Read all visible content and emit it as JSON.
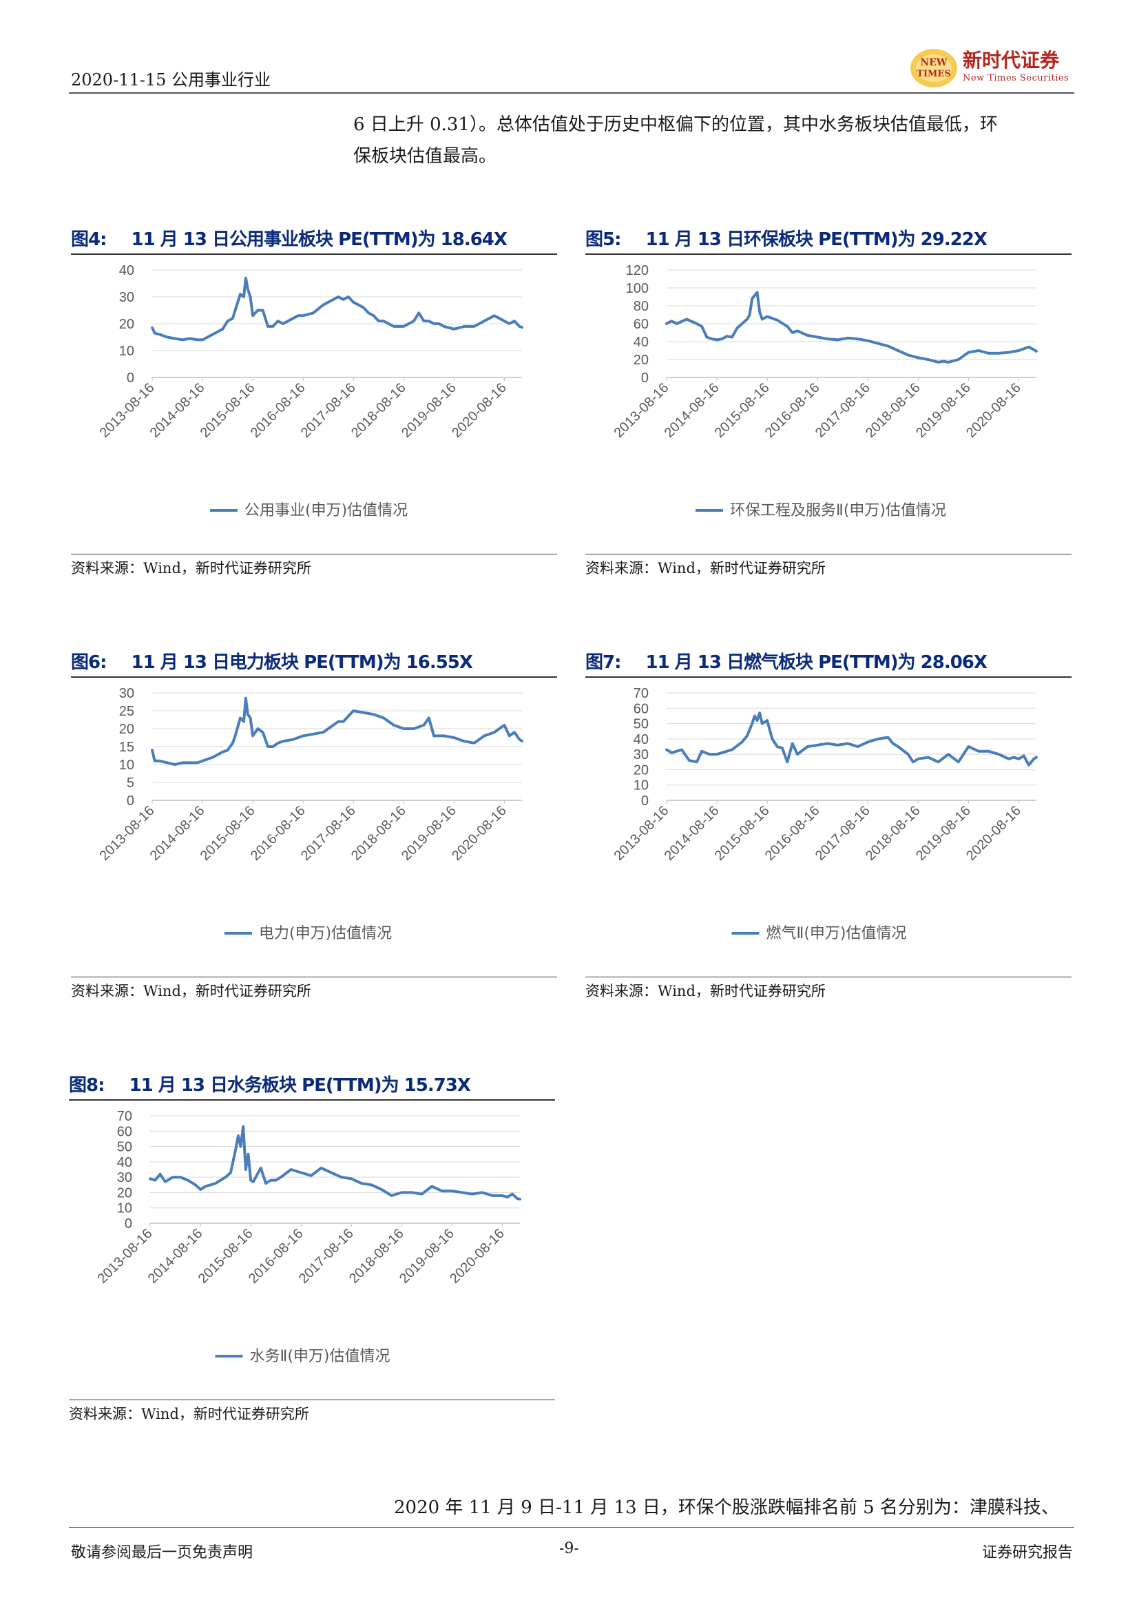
{
  "header": {
    "date_industry": "2020-11-15 公用事业行业",
    "logo_name": "新时代证券",
    "logo_sub": "New Times Securities",
    "logo_mark_1": "NEW",
    "logo_mark_2": "TIMES"
  },
  "intro": {
    "line1": "6 日上升 0.31）。总体估值处于历史中枢偏下的位置，其中水务板块估值最低，环",
    "line2": "保板块估值最高。"
  },
  "colors": {
    "line": "#4a7ebb",
    "title": "#0b2b7a",
    "grid": "#d9d9d9",
    "tick": "#595959"
  },
  "figures": [
    {
      "num": "图4:",
      "title": "11 月 13 日公用事业板块 PE(TTM)为 18.64X",
      "source": "资料来源：Wind，新时代证券研究所"
    },
    {
      "num": "图5:",
      "title": "11 月 13 日环保板块 PE(TTM)为 29.22X",
      "source": "资料来源：Wind，新时代证券研究所"
    },
    {
      "num": "图6:",
      "title": "11 月 13 日电力板块 PE(TTM)为 16.55X",
      "source": "资料来源：Wind，新时代证券研究所"
    },
    {
      "num": "图7:",
      "title": "11 月 13 日燃气板块 PE(TTM)为 28.06X",
      "source": "资料来源：Wind，新时代证券研究所"
    },
    {
      "num": "图8:",
      "title": "11 月 13 日水务板块 PE(TTM)为 15.73X",
      "source": "资料来源：Wind，新时代证券研究所"
    }
  ],
  "chart_data": [
    {
      "type": "line",
      "categories": [
        "2013-08-16",
        "2014-08-16",
        "2015-08-16",
        "2016-08-16",
        "2017-08-16",
        "2018-08-16",
        "2019-08-16",
        "2020-08-16"
      ],
      "ylim": [
        0,
        40
      ],
      "yticks": [
        0,
        10,
        20,
        30,
        40
      ],
      "grid": true,
      "legend_position": "bottom",
      "series": [
        {
          "name": "公用事业(申万)估值情况",
          "x": [
            0,
            0.05,
            0.15,
            0.3,
            0.45,
            0.6,
            0.75,
            0.9,
            1.0,
            1.2,
            1.4,
            1.5,
            1.6,
            1.65,
            1.75,
            1.82,
            1.86,
            1.9,
            1.95,
            2.0,
            2.1,
            2.2,
            2.3,
            2.4,
            2.5,
            2.6,
            2.7,
            2.8,
            2.9,
            3.0,
            3.2,
            3.4,
            3.6,
            3.7,
            3.8,
            3.9,
            4.0,
            4.1,
            4.2,
            4.3,
            4.4,
            4.5,
            4.6,
            4.7,
            4.8,
            5.0,
            5.1,
            5.2,
            5.3,
            5.4,
            5.5,
            5.6,
            5.7,
            5.8,
            6.0,
            6.2,
            6.4,
            6.6,
            6.8,
            7.0,
            7.1,
            7.2,
            7.3,
            7.35
          ],
          "values": [
            18.5,
            16.5,
            16,
            15,
            14.5,
            14,
            14.5,
            14,
            14,
            16,
            18,
            21,
            22,
            25,
            31,
            30,
            37,
            33,
            30,
            23,
            25,
            25,
            19,
            19,
            21,
            20,
            21,
            22,
            23,
            23,
            24,
            27,
            29,
            30,
            29,
            30,
            28,
            27,
            26,
            24,
            23,
            21,
            21,
            20,
            19,
            19,
            20,
            21,
            24,
            21,
            21,
            20,
            20,
            19,
            18,
            19,
            19,
            21,
            23,
            21,
            20,
            21,
            19,
            18.64
          ]
        }
      ]
    },
    {
      "type": "line",
      "categories": [
        "2013-08-16",
        "2014-08-16",
        "2015-08-16",
        "2016-08-16",
        "2017-08-16",
        "2018-08-16",
        "2019-08-16",
        "2020-08-16"
      ],
      "ylim": [
        0,
        120
      ],
      "yticks": [
        0,
        20,
        40,
        60,
        80,
        100,
        120
      ],
      "grid": true,
      "legend_position": "bottom",
      "series": [
        {
          "name": "环保工程及服务Ⅱ(申万)估值情况",
          "x": [
            0,
            0.1,
            0.2,
            0.4,
            0.6,
            0.7,
            0.8,
            0.9,
            1.0,
            1.1,
            1.2,
            1.3,
            1.4,
            1.5,
            1.6,
            1.65,
            1.7,
            1.8,
            1.85,
            1.9,
            2.0,
            2.2,
            2.4,
            2.5,
            2.6,
            2.8,
            3.0,
            3.2,
            3.4,
            3.6,
            3.8,
            4.0,
            4.2,
            4.4,
            4.6,
            4.8,
            5.0,
            5.2,
            5.4,
            5.5,
            5.6,
            5.8,
            6.0,
            6.2,
            6.4,
            6.6,
            6.8,
            7.0,
            7.1,
            7.2,
            7.3,
            7.35
          ],
          "values": [
            60,
            63,
            60,
            65,
            60,
            57,
            45,
            43,
            42,
            43,
            46,
            45,
            55,
            60,
            65,
            70,
            88,
            95,
            73,
            65,
            68,
            64,
            57,
            50,
            52,
            47,
            45,
            43,
            42,
            44,
            43,
            41,
            38,
            35,
            30,
            25,
            22,
            20,
            17,
            18,
            17,
            20,
            28,
            30,
            27,
            27,
            28,
            30,
            32,
            34,
            31,
            29.22
          ]
        }
      ]
    },
    {
      "type": "line",
      "categories": [
        "2013-08-16",
        "2014-08-16",
        "2015-08-16",
        "2016-08-16",
        "2017-08-16",
        "2018-08-16",
        "2019-08-16",
        "2020-08-16"
      ],
      "ylim": [
        0,
        30
      ],
      "yticks": [
        0,
        5,
        10,
        15,
        20,
        25,
        30
      ],
      "grid": true,
      "legend_position": "bottom",
      "series": [
        {
          "name": "电力(申万)估值情况",
          "x": [
            0,
            0.05,
            0.15,
            0.3,
            0.45,
            0.6,
            0.75,
            0.9,
            1.0,
            1.2,
            1.4,
            1.5,
            1.6,
            1.65,
            1.75,
            1.82,
            1.86,
            1.9,
            1.95,
            2.0,
            2.1,
            2.2,
            2.3,
            2.4,
            2.5,
            2.6,
            2.8,
            3.0,
            3.2,
            3.4,
            3.6,
            3.7,
            3.8,
            4.0,
            4.2,
            4.4,
            4.6,
            4.8,
            5.0,
            5.2,
            5.4,
            5.5,
            5.6,
            5.8,
            6.0,
            6.2,
            6.4,
            6.6,
            6.8,
            7.0,
            7.1,
            7.2,
            7.3,
            7.35
          ],
          "values": [
            14,
            11,
            11,
            10.5,
            10,
            10.5,
            10.5,
            10.5,
            11,
            12,
            13.5,
            14,
            16,
            18,
            23,
            22,
            28.5,
            24,
            23,
            18,
            20,
            19,
            15,
            15,
            16,
            16.5,
            17,
            18,
            18.5,
            19,
            21,
            22,
            22,
            25,
            24.5,
            24,
            23,
            21,
            20,
            20,
            21,
            23,
            18,
            18,
            17.5,
            16.5,
            16,
            18,
            19,
            21,
            18,
            19,
            17,
            16.55
          ]
        }
      ]
    },
    {
      "type": "line",
      "categories": [
        "2013-08-16",
        "2014-08-16",
        "2015-08-16",
        "2016-08-16",
        "2017-08-16",
        "2018-08-16",
        "2019-08-16",
        "2020-08-16"
      ],
      "ylim": [
        0,
        70
      ],
      "yticks": [
        0,
        10,
        20,
        30,
        40,
        50,
        60,
        70
      ],
      "grid": true,
      "legend_position": "bottom",
      "series": [
        {
          "name": "燃气Ⅱ(申万)估值情况",
          "x": [
            0,
            0.1,
            0.3,
            0.45,
            0.6,
            0.7,
            0.85,
            1.0,
            1.2,
            1.3,
            1.5,
            1.6,
            1.7,
            1.75,
            1.8,
            1.85,
            1.9,
            2.0,
            2.1,
            2.2,
            2.3,
            2.4,
            2.5,
            2.6,
            2.8,
            3.0,
            3.2,
            3.4,
            3.6,
            3.8,
            4.0,
            4.2,
            4.4,
            4.5,
            4.6,
            4.8,
            4.9,
            5.0,
            5.2,
            5.4,
            5.6,
            5.8,
            6.0,
            6.2,
            6.4,
            6.6,
            6.8,
            6.9,
            7.0,
            7.1,
            7.2,
            7.3,
            7.35
          ],
          "values": [
            33,
            31,
            33,
            26,
            25,
            32,
            30,
            30,
            32,
            33,
            38,
            42,
            50,
            55,
            52,
            57,
            50,
            52,
            40,
            35,
            34,
            25,
            37,
            30,
            35,
            36,
            37,
            36,
            37,
            35,
            38,
            40,
            41,
            37,
            35,
            30,
            25,
            27,
            28,
            25,
            30,
            25,
            35,
            32,
            32,
            30,
            27,
            28,
            27,
            29,
            23,
            27,
            28.06
          ]
        }
      ]
    },
    {
      "type": "line",
      "categories": [
        "2013-08-16",
        "2014-08-16",
        "2015-08-16",
        "2016-08-16",
        "2017-08-16",
        "2018-08-16",
        "2019-08-16",
        "2020-08-16"
      ],
      "ylim": [
        0,
        70
      ],
      "yticks": [
        0,
        10,
        20,
        30,
        40,
        50,
        60,
        70
      ],
      "grid": true,
      "legend_position": "bottom",
      "series": [
        {
          "name": "水务Ⅱ(申万)估值情况",
          "x": [
            0,
            0.1,
            0.2,
            0.3,
            0.45,
            0.6,
            0.75,
            0.9,
            1.0,
            1.1,
            1.2,
            1.3,
            1.5,
            1.6,
            1.7,
            1.75,
            1.8,
            1.85,
            1.9,
            1.95,
            2.0,
            2.05,
            2.1,
            2.2,
            2.3,
            2.4,
            2.5,
            2.6,
            2.8,
            3.0,
            3.2,
            3.4,
            3.6,
            3.8,
            4.0,
            4.2,
            4.4,
            4.6,
            4.8,
            5.0,
            5.2,
            5.4,
            5.6,
            5.8,
            6.0,
            6.2,
            6.4,
            6.6,
            6.8,
            7.0,
            7.1,
            7.2,
            7.3,
            7.35
          ],
          "values": [
            29,
            28,
            32,
            27,
            30,
            30,
            28,
            25,
            22,
            24,
            25,
            26,
            30,
            33,
            48,
            57,
            50,
            63,
            35,
            45,
            28,
            27,
            30,
            36,
            26,
            28,
            28,
            30,
            35,
            33,
            31,
            36,
            33,
            30,
            29,
            26,
            25,
            22,
            18,
            20,
            20,
            19,
            24,
            21,
            21,
            20,
            19,
            20,
            18,
            18,
            17,
            19,
            16,
            15.73
          ]
        }
      ]
    }
  ],
  "bottom_text": "2020 年 11 月 9 日-11 月 13 日，环保个股涨跌幅排名前 5 名分别为：津膜科技、",
  "footer": {
    "left": "敬请参阅最后一页免责声明",
    "center": "-9-",
    "right": "证券研究报告"
  }
}
